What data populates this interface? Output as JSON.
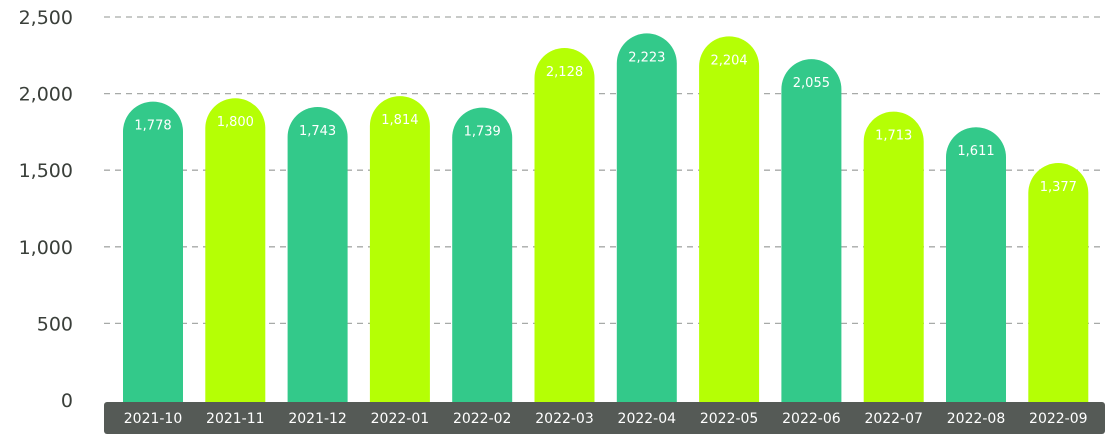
{
  "chart_data": {
    "type": "bar",
    "categories": [
      "2021-10",
      "2021-11",
      "2021-12",
      "2022-01",
      "2022-02",
      "2022-03",
      "2022-04",
      "2022-05",
      "2022-06",
      "2022-07",
      "2022-08",
      "2022-09"
    ],
    "values": [
      1778,
      1800,
      1743,
      1814,
      1739,
      2128,
      2223,
      2204,
      2055,
      1713,
      1611,
      1377
    ],
    "data_labels": [
      "1,778",
      "1,800",
      "1,743",
      "1,814",
      "1,739",
      "2,128",
      "2,223",
      "2,204",
      "2,055",
      "1,713",
      "1,611",
      "1,377"
    ],
    "bar_colors": [
      "#33c98a",
      "#b5ff05",
      "#33c98a",
      "#b5ff05",
      "#33c98a",
      "#b5ff05",
      "#33c98a",
      "#b5ff05",
      "#33c98a",
      "#b5ff05",
      "#33c98a",
      "#b5ff05"
    ],
    "yticks": [
      0,
      500,
      1000,
      1500,
      2000,
      2500
    ],
    "ytick_labels": [
      "0",
      "500",
      "1,000",
      "1,500",
      "2,000",
      "2,500"
    ],
    "ylim": [
      0,
      2500
    ],
    "grid": true,
    "grid_style": "dashed",
    "axis_band_color": "#555a56",
    "title": "",
    "xlabel": "",
    "ylabel": ""
  }
}
